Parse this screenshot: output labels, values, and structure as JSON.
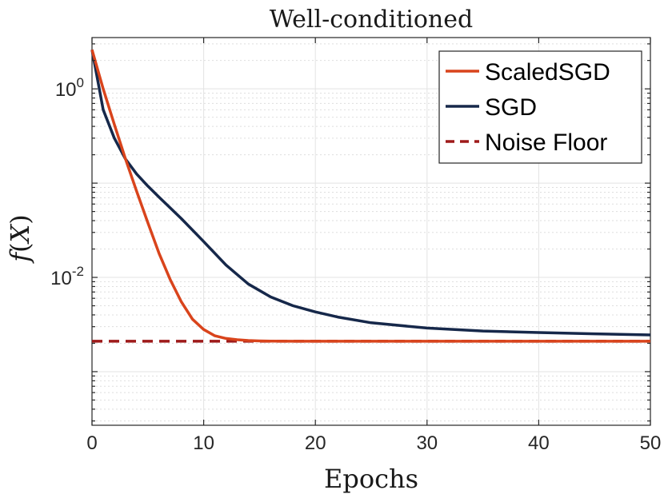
{
  "chart_data": {
    "type": "line",
    "title": "Well-conditioned",
    "xlabel": "Epochs",
    "ylabel": "f(X)",
    "xscale": "linear",
    "yscale": "log",
    "xlim": [
      0,
      50
    ],
    "ylim": [
      0.00027,
      3.5
    ],
    "x_ticks": [
      0,
      10,
      20,
      30,
      40,
      50
    ],
    "x_tick_labels": [
      "0",
      "10",
      "20",
      "30",
      "40",
      "50"
    ],
    "y_ticks": [
      1,
      0.01
    ],
    "y_tick_labels": [
      {
        "base": "10",
        "exp": "0"
      },
      {
        "base": "10",
        "exp": "-2"
      }
    ],
    "grid": true,
    "legend_position": "top-right",
    "series": [
      {
        "name": "ScaledSGD",
        "color": "#d9441c",
        "style": "solid",
        "x": [
          0,
          1,
          2,
          3,
          4,
          5,
          6,
          7,
          8,
          9,
          10,
          11,
          12,
          13,
          14,
          15,
          16,
          18,
          20,
          25,
          30,
          35,
          40,
          45,
          50
        ],
        "y": [
          2.6,
          1.0,
          0.42,
          0.18,
          0.082,
          0.038,
          0.018,
          0.0095,
          0.0055,
          0.0036,
          0.0028,
          0.0024,
          0.00225,
          0.00218,
          0.00214,
          0.00212,
          0.00211,
          0.0021,
          0.0021,
          0.0021,
          0.0021,
          0.0021,
          0.0021,
          0.0021,
          0.0021
        ]
      },
      {
        "name": "SGD",
        "color": "#16284a",
        "style": "solid",
        "x": [
          0,
          1,
          2,
          3,
          4,
          5,
          6,
          8,
          10,
          12,
          14,
          16,
          18,
          20,
          22,
          25,
          30,
          35,
          40,
          45,
          50
        ],
        "y": [
          2.6,
          0.6,
          0.3,
          0.18,
          0.125,
          0.093,
          0.071,
          0.042,
          0.024,
          0.0135,
          0.0085,
          0.0062,
          0.005,
          0.0043,
          0.0038,
          0.0033,
          0.0029,
          0.0027,
          0.0026,
          0.00252,
          0.00245
        ]
      },
      {
        "name": "Noise Floor",
        "color": "#9e1a1a",
        "style": "dashed",
        "x": [
          0,
          50
        ],
        "y": [
          0.0021,
          0.0021
        ]
      }
    ]
  }
}
